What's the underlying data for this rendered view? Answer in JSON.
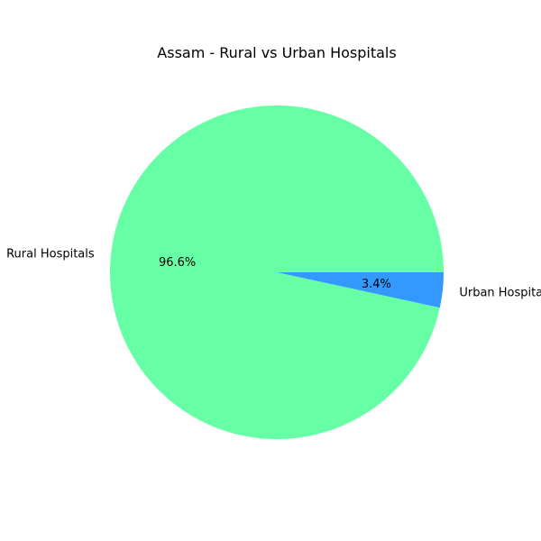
{
  "chart_data": {
    "type": "pie",
    "title": "Assam - Rural vs Urban Hospitals",
    "slices": [
      {
        "label": "Rural Hospitals",
        "value": 96.6,
        "pct_label": "96.6%",
        "color": "#66ffa6"
      },
      {
        "label": "Urban Hospitals",
        "value": 3.4,
        "pct_label": "3.4%",
        "color": "#3399ff"
      }
    ]
  }
}
